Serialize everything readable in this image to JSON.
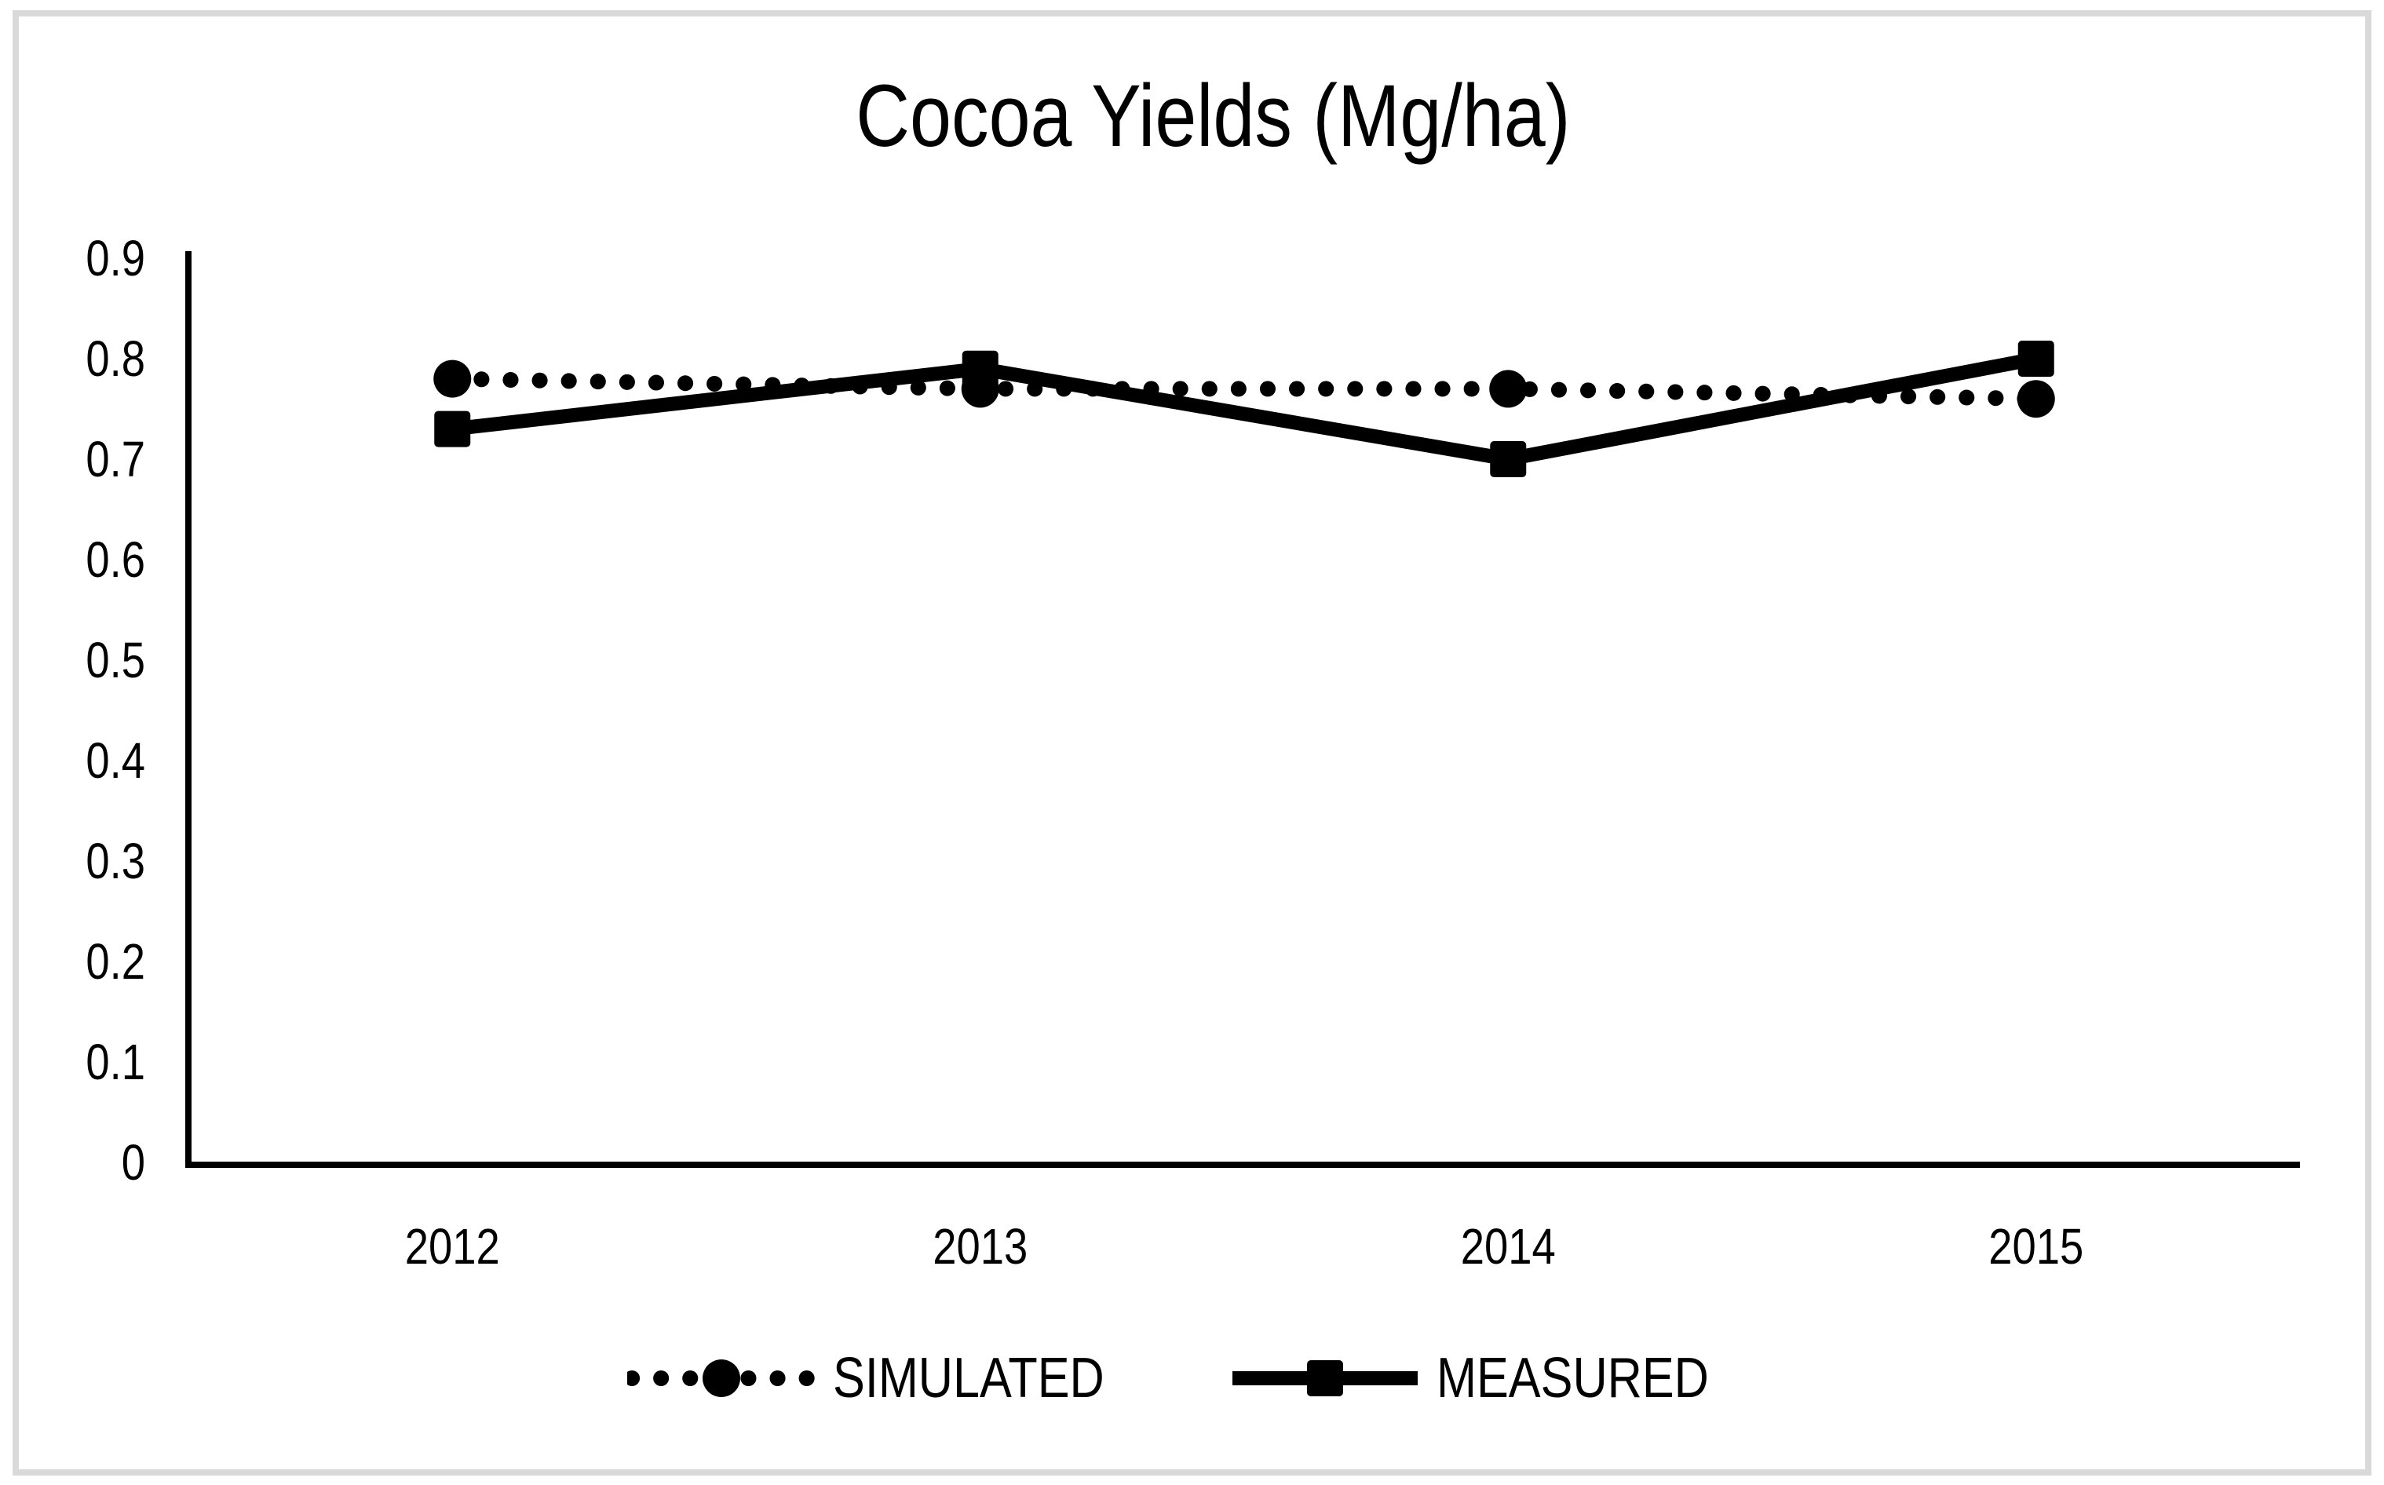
{
  "page": {
    "background_color": "#ffffff",
    "frame_border_color": "#d9d9d9",
    "ink_color": "#000000"
  },
  "chart_data": {
    "type": "line",
    "title": "Cocoa Yields (Mg/ha)",
    "categories": [
      "2012",
      "2013",
      "2014",
      "2015"
    ],
    "series": [
      {
        "name": "SIMULATED",
        "values": [
          0.78,
          0.77,
          0.77,
          0.76
        ],
        "marker": "circle",
        "line_style": "dotted"
      },
      {
        "name": "MEASURED",
        "values": [
          0.73,
          0.79,
          0.7,
          0.8
        ],
        "marker": "square",
        "line_style": "solid"
      }
    ],
    "xlabel": "",
    "ylabel": "",
    "ylim": [
      0,
      0.9
    ],
    "ytick_step": 0.1,
    "ytick_labels": [
      "0.9",
      "0.8",
      "0.7",
      "0.6",
      "0.5",
      "0.4",
      "0.3",
      "0.2",
      "0.1",
      "0"
    ],
    "grid": false,
    "legend_position": "bottom-center",
    "series_color": "#000000",
    "axis_color": "#000000"
  },
  "legend": {
    "items": [
      {
        "label": "SIMULATED",
        "symbol": "dotted-line-circle-marker"
      },
      {
        "label": "MEASURED",
        "symbol": "solid-line-square-marker"
      }
    ]
  }
}
